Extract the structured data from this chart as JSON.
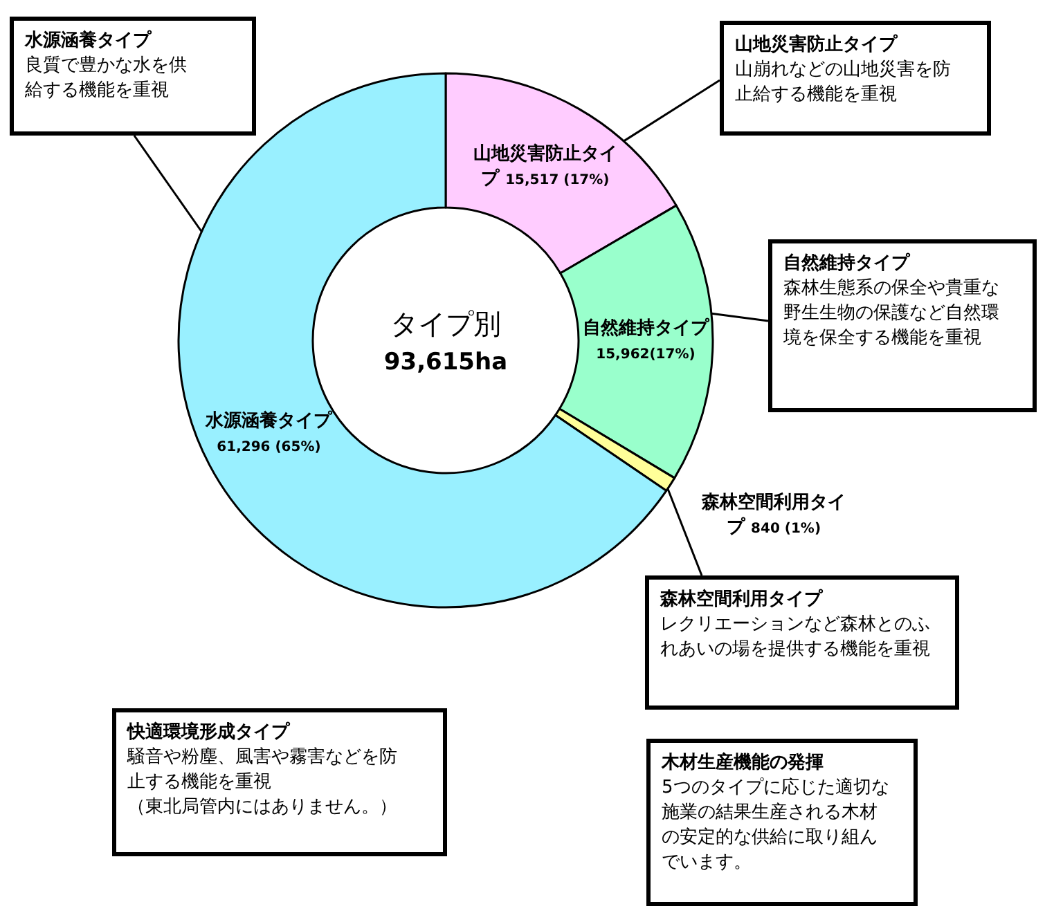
{
  "chart_data": {
    "type": "donut",
    "title": "タイプ別",
    "subtitle": "93,615ha",
    "categories": [
      "山地災害防止タイプ",
      "自然維持タイプ",
      "森林空間利用タイプ",
      "水源涵養タイプ"
    ],
    "values": [
      15517,
      15962,
      840,
      61296
    ],
    "colors": [
      "#ffccff",
      "#99ffcc",
      "#ffff99",
      "#99f0ff"
    ],
    "value_labels": [
      "15,517 (17%)",
      "15,962(17%)",
      "840 (1%)",
      "61,296 (65%)"
    ],
    "annotations": [
      "水源涵養タイプ",
      "良質で豊かな水を供給する機能を重視",
      "山地災害防止タイプ",
      "山崩れなどの山地災害を防止給する機能を重視",
      "自然維持タイプ",
      "森林生態系の保全や貴重な野生生物の保護など自然環境を保全する機能を重視",
      "森林空間利用タイプ",
      "レクリエーションなど森林とのふれあいの場を提供する機能を重視",
      "快適環境形成タイプ",
      "騒音や粉塵、風害や霧害などを防止する機能を重視",
      "（東北局管内にはありません。）",
      "木材生産機能の発揮",
      "5つのタイプに応じた適切な施業の結果生産される木材の安定的な供給に取り組んでいます。"
    ]
  }
}
